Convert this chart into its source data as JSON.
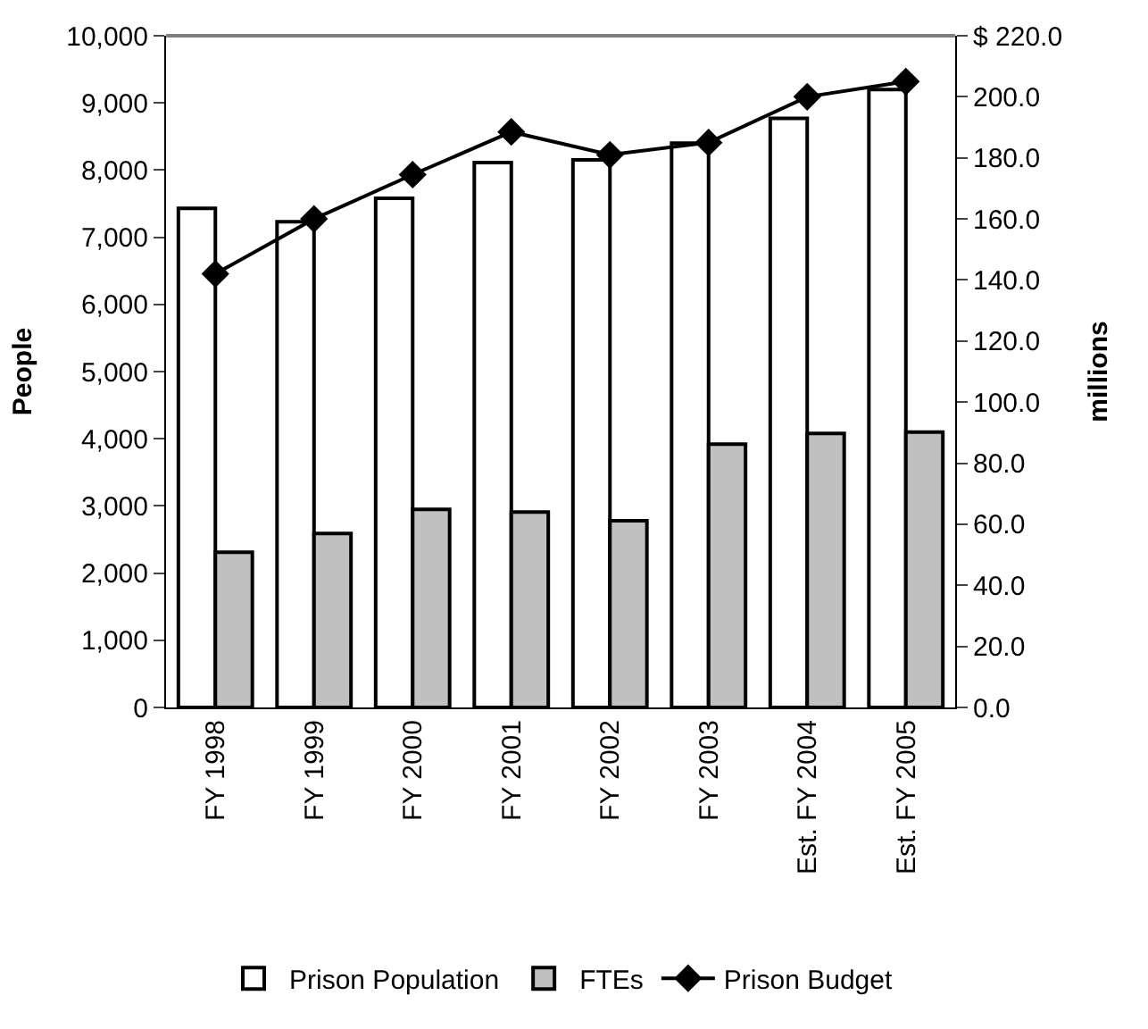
{
  "chart_data": {
    "type": "bar",
    "ylabel": "People",
    "y2label": "millions",
    "categories": [
      "FY 1998",
      "FY 1999",
      "FY 2000",
      "FY 2001",
      "FY 2002",
      "FY 2003",
      "Est. FY 2004",
      "Est. FY 2005"
    ],
    "series": [
      {
        "name": "Prison Population",
        "color": "#ffffff",
        "values": [
          7430,
          7230,
          7580,
          8110,
          8150,
          8400,
          8770,
          9200
        ]
      },
      {
        "name": "FTEs",
        "color": "#c0c0c0",
        "values": [
          2310,
          2590,
          2950,
          2910,
          2780,
          3920,
          4080,
          4100
        ]
      },
      {
        "name": "Prison Budget",
        "type": "line",
        "axis": "y2",
        "color": "#000000",
        "marker": "diamond",
        "values": [
          142,
          160,
          174.5,
          188.5,
          181,
          185,
          200,
          205
        ]
      }
    ],
    "ylim": [
      0,
      10000
    ],
    "yticks": [
      0,
      {
        "value": 1000,
        "label": "1,000"
      },
      {
        "value": 2000,
        "label": "2,000"
      },
      {
        "value": 3000,
        "label": "3,000"
      },
      {
        "value": 4000,
        "label": "4,000"
      },
      {
        "value": 5000,
        "label": "5,000"
      },
      {
        "value": 6000,
        "label": "6,000"
      },
      {
        "value": 7000,
        "label": "7,000"
      },
      {
        "value": 8000,
        "label": "8,000"
      },
      {
        "value": 9000,
        "label": "9,000"
      },
      {
        "value": 10000,
        "label": "10,000"
      }
    ],
    "y2lim": [
      0,
      220
    ],
    "y2ticks": [
      {
        "value": 0,
        "label": "0.0"
      },
      {
        "value": 20,
        "label": "20.0"
      },
      {
        "value": 40,
        "label": "40.0"
      },
      {
        "value": 60,
        "label": "60.0"
      },
      {
        "value": 80,
        "label": "80.0"
      },
      {
        "value": 100,
        "label": "100.0"
      },
      {
        "value": 120,
        "label": "120.0"
      },
      {
        "value": 140,
        "label": "140.0"
      },
      {
        "value": 160,
        "label": "160.0"
      },
      {
        "value": 180,
        "label": "180.0"
      },
      {
        "value": 200,
        "label": "200.0"
      },
      {
        "value": 220,
        "label": "$ 220.0"
      }
    ],
    "legend": "bottom"
  }
}
